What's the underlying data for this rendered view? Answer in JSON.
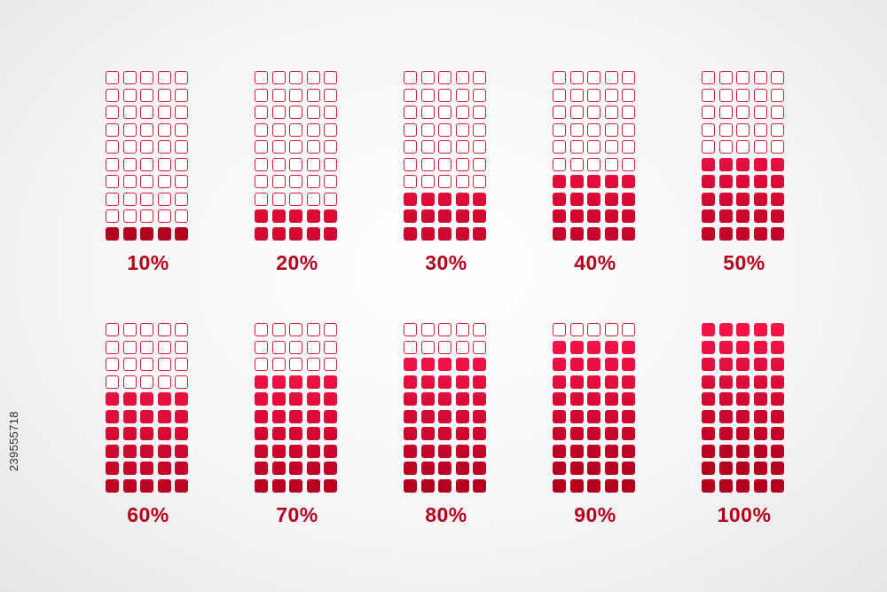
{
  "chart_data": {
    "type": "waffle",
    "grid": {
      "columns": 5,
      "rows": 10
    },
    "gauges": [
      {
        "label": "10%",
        "value": 10
      },
      {
        "label": "20%",
        "value": 20
      },
      {
        "label": "30%",
        "value": 30
      },
      {
        "label": "40%",
        "value": 40
      },
      {
        "label": "50%",
        "value": 50
      },
      {
        "label": "60%",
        "value": 60
      },
      {
        "label": "70%",
        "value": 70
      },
      {
        "label": "80%",
        "value": 80
      },
      {
        "label": "90%",
        "value": 90
      },
      {
        "label": "100%",
        "value": 100
      }
    ],
    "colors": {
      "filled_top": "#f8154a",
      "filled_bottom": "#b3001e",
      "empty_outline": "#d31a38",
      "label": "#b4001d"
    }
  },
  "watermark": {
    "stock_id": "239555718"
  }
}
